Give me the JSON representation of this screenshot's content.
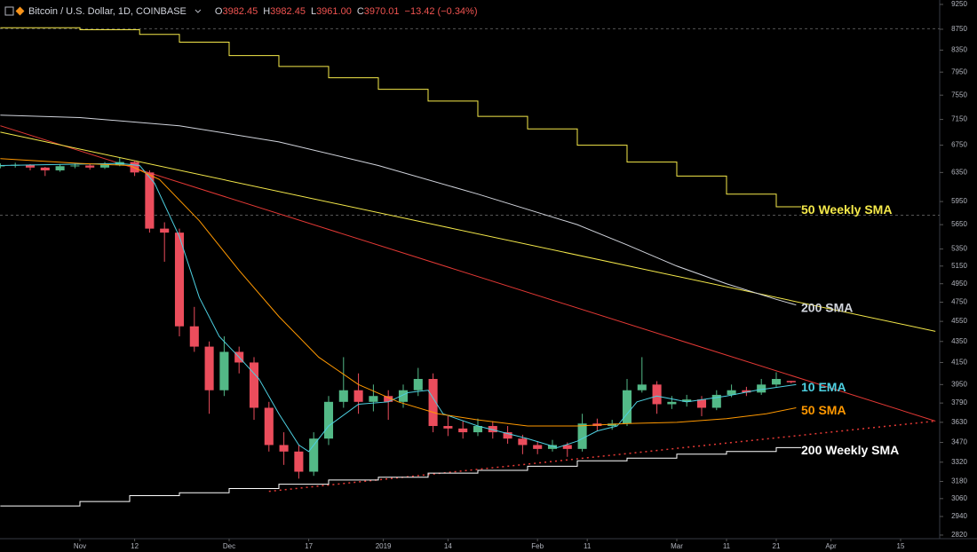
{
  "chart_data": {
    "type": "candlestick",
    "title": "Bitcoin / U.S. Dollar, 1D, COINBASE",
    "header": [
      {
        "key": "O",
        "value": "3982.45"
      },
      {
        "key": "H",
        "value": "3982.45"
      },
      {
        "key": "L",
        "value": "3961.00"
      },
      {
        "key": "C",
        "value": "3970.01"
      }
    ],
    "change": "−13.42 (−0.34%)",
    "log_scale": true,
    "grid": false,
    "up_color": "#53b987",
    "down_color": "#eb4d5c",
    "xlim": [
      -16.07,
      172.86
    ],
    "xticks": [
      {
        "value": 0,
        "label": "Nov"
      },
      {
        "value": 11,
        "label": "12"
      },
      {
        "value": 30,
        "label": "Dec"
      },
      {
        "value": 46,
        "label": "17"
      },
      {
        "value": 61,
        "label": "2019"
      },
      {
        "value": 74,
        "label": "14"
      },
      {
        "value": 92,
        "label": "Feb"
      },
      {
        "value": 102,
        "label": "11"
      },
      {
        "value": 120,
        "label": "Mar"
      },
      {
        "value": 130,
        "label": "11"
      },
      {
        "value": 140,
        "label": "21"
      },
      {
        "value": 151,
        "label": "Apr"
      },
      {
        "value": 165,
        "label": "15"
      }
    ],
    "ylim": [
      2803,
      9342
    ],
    "yticks": [
      9250,
      8750,
      8350,
      7950,
      7550,
      7150,
      6750,
      6350,
      5950,
      5650,
      5350,
      5150,
      4950,
      4750,
      4550,
      4350,
      4150,
      3950,
      3790,
      3630,
      3470,
      3320,
      3180,
      3060,
      2940,
      2820
    ],
    "x": [
      -16,
      -13,
      -10,
      -7,
      -4,
      -1,
      2,
      5,
      8,
      11,
      14,
      17,
      20,
      23,
      26,
      29,
      32,
      35,
      38,
      41,
      44,
      47,
      50,
      53,
      56,
      59,
      62,
      65,
      68,
      71,
      74,
      77,
      80,
      83,
      86,
      89,
      92,
      95,
      98,
      101,
      104,
      107,
      110,
      113,
      116,
      119,
      122,
      125,
      128,
      131,
      134,
      137,
      140,
      143
    ],
    "open": [
      6440,
      6450,
      6460,
      6420,
      6380,
      6440,
      6450,
      6420,
      6460,
      6500,
      6350,
      5600,
      5550,
      4500,
      4300,
      3900,
      4250,
      4150,
      3750,
      3450,
      3400,
      3250,
      3500,
      3800,
      3900,
      3800,
      3850,
      3800,
      3900,
      4000,
      3600,
      3580,
      3550,
      3600,
      3550,
      3500,
      3450,
      3420,
      3450,
      3420,
      3620,
      3600,
      3620,
      3900,
      3950,
      3780,
      3800,
      3820,
      3750,
      3860,
      3900,
      3880,
      3950,
      3982.45
    ],
    "high": [
      6480,
      6490,
      6470,
      6430,
      6470,
      6480,
      6470,
      6500,
      6560,
      6520,
      6380,
      5680,
      5600,
      4700,
      4350,
      4400,
      4300,
      4200,
      3800,
      3550,
      3450,
      3550,
      3850,
      4200,
      4050,
      3950,
      3900,
      3950,
      4100,
      4050,
      3680,
      3640,
      3660,
      3640,
      3600,
      3530,
      3480,
      3490,
      3470,
      3700,
      3660,
      3650,
      4000,
      4200,
      3980,
      3850,
      3860,
      3850,
      3900,
      3950,
      3930,
      4000,
      4060,
      3982.45
    ],
    "low": [
      6410,
      6420,
      6380,
      6300,
      6360,
      6410,
      6390,
      6400,
      6440,
      6300,
      5550,
      5200,
      4400,
      4250,
      3700,
      3850,
      4050,
      3650,
      3400,
      3300,
      3200,
      3220,
      3450,
      3750,
      3700,
      3720,
      3650,
      3750,
      3850,
      3550,
      3520,
      3500,
      3520,
      3500,
      3460,
      3380,
      3380,
      3400,
      3360,
      3400,
      3560,
      3570,
      3600,
      3880,
      3700,
      3740,
      3760,
      3680,
      3730,
      3840,
      3850,
      3860,
      3930,
      3961.0
    ],
    "close": [
      6450,
      6460,
      6420,
      6380,
      6440,
      6450,
      6420,
      6460,
      6500,
      6350,
      5600,
      5550,
      4500,
      4300,
      3900,
      4250,
      4150,
      3750,
      3450,
      3400,
      3250,
      3500,
      3800,
      3900,
      3800,
      3850,
      3800,
      3900,
      4000,
      3600,
      3580,
      3550,
      3600,
      3550,
      3500,
      3450,
      3420,
      3450,
      3420,
      3620,
      3600,
      3620,
      3900,
      3950,
      3780,
      3800,
      3820,
      3750,
      3860,
      3900,
      3880,
      3950,
      4000,
      3970.01
    ],
    "hlines": [
      8760,
      5770
    ],
    "series": [
      {
        "name": "50 Weekly SMA",
        "color": "#f5e94a",
        "step": true,
        "x": [
          -16,
          0,
          12,
          20,
          30,
          40,
          50,
          60,
          70,
          80,
          90,
          100,
          110,
          120,
          130,
          140,
          145
        ],
        "values": [
          8780,
          8740,
          8650,
          8500,
          8250,
          8050,
          7850,
          7650,
          7450,
          7200,
          7000,
          6750,
          6500,
          6300,
          6050,
          5880,
          5880
        ]
      },
      {
        "name": "200 SMA",
        "color": "#d1d4dc",
        "step": false,
        "x": [
          -16,
          0,
          20,
          40,
          60,
          80,
          100,
          110,
          120,
          130,
          140,
          144
        ],
        "values": [
          7220,
          7180,
          7050,
          6800,
          6450,
          6050,
          5650,
          5400,
          5150,
          4950,
          4780,
          4720
        ]
      },
      {
        "name": "10 EMA",
        "color": "#4dd0e1",
        "step": false,
        "x": [
          -16,
          8,
          12,
          15,
          20,
          24,
          28,
          32,
          36,
          40,
          44,
          46,
          50,
          56,
          62,
          66,
          70,
          73,
          80,
          90,
          96,
          100,
          104,
          108,
          112,
          116,
          122,
          130,
          136,
          144
        ],
        "values": [
          6450,
          6480,
          6450,
          6200,
          5500,
          4800,
          4400,
          4200,
          4000,
          3700,
          3450,
          3400,
          3600,
          3780,
          3800,
          3880,
          3900,
          3700,
          3600,
          3500,
          3430,
          3480,
          3560,
          3600,
          3800,
          3850,
          3800,
          3850,
          3900,
          3950
        ]
      },
      {
        "name": "50 SMA",
        "color": "#ff9800",
        "step": false,
        "x": [
          -16,
          0,
          10,
          16,
          24,
          32,
          40,
          48,
          56,
          64,
          72,
          80,
          90,
          100,
          110,
          120,
          130,
          138,
          144
        ],
        "values": [
          6550,
          6480,
          6450,
          6250,
          5700,
          5100,
          4600,
          4200,
          3950,
          3800,
          3700,
          3650,
          3600,
          3600,
          3620,
          3630,
          3660,
          3700,
          3750
        ]
      },
      {
        "name": "200 Weekly SMA",
        "color": "#ffffff",
        "step": true,
        "x": [
          -16,
          0,
          10,
          20,
          30,
          40,
          50,
          60,
          70,
          80,
          90,
          100,
          110,
          120,
          130,
          140,
          145
        ],
        "values": [
          3010,
          3040,
          3080,
          3100,
          3130,
          3160,
          3190,
          3210,
          3240,
          3260,
          3290,
          3330,
          3350,
          3380,
          3400,
          3430,
          3430
        ]
      }
    ],
    "trendlines": [
      {
        "color": "#e53935",
        "dashed": false,
        "x": [
          -16,
          172
        ],
        "values": [
          7050,
          3640
        ]
      },
      {
        "color": "#f5e94a",
        "dashed": false,
        "x": [
          -16,
          172
        ],
        "values": [
          6950,
          4450
        ]
      },
      {
        "color": "#e53935",
        "dashed": true,
        "x": [
          38,
          172
        ],
        "values": [
          3110,
          3640
        ]
      }
    ]
  }
}
